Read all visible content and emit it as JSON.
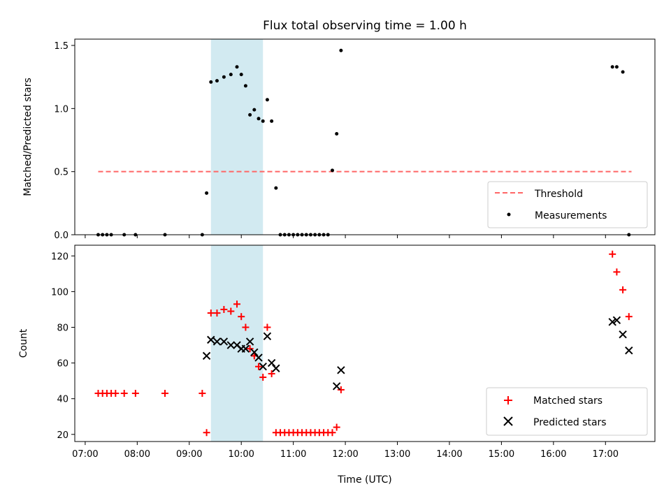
{
  "chart_data": [
    {
      "type": "scatter",
      "title": "Flux total observing time = 1.00 h",
      "ylabel": "Matched/Predicted stars",
      "xlabel": "",
      "x_range_hours": [
        6.8,
        17.95
      ],
      "ylim": [
        0,
        1.55
      ],
      "yticks": [
        0.0,
        0.5,
        1.0,
        1.5
      ],
      "ytick_labels": [
        "0.0",
        "0.5",
        "1.0",
        "1.5"
      ],
      "grid": false,
      "legend_position": "lower-right",
      "highlight_span": {
        "x0": "09:25",
        "x1": "10:25",
        "color": "#add8e6"
      },
      "series": [
        {
          "name": "Threshold",
          "kind": "line",
          "style": "dashed",
          "color": "#ff6666",
          "x": [
            "07:15",
            "17:30"
          ],
          "y": [
            0.5,
            0.5
          ]
        },
        {
          "name": "Measurements",
          "kind": "points",
          "color": "#000000",
          "x": [
            "07:15",
            "07:20",
            "07:25",
            "07:30",
            "07:45",
            "07:58",
            "08:32",
            "09:15",
            "09:20",
            "09:25",
            "09:32",
            "09:40",
            "09:48",
            "09:55",
            "10:00",
            "10:05",
            "10:10",
            "10:15",
            "10:20",
            "10:25",
            "10:30",
            "10:35",
            "10:40",
            "10:45",
            "10:50",
            "10:55",
            "11:00",
            "11:05",
            "11:10",
            "11:15",
            "11:20",
            "11:25",
            "11:30",
            "11:35",
            "11:40",
            "11:45",
            "11:50",
            "11:55",
            "17:08",
            "17:13",
            "17:20",
            "17:27"
          ],
          "y": [
            0,
            0,
            0,
            0,
            0,
            0,
            0,
            0,
            0.33,
            1.21,
            1.22,
            1.25,
            1.27,
            1.33,
            1.27,
            1.18,
            0.95,
            0.99,
            0.92,
            0.9,
            1.07,
            0.9,
            0.37,
            0,
            0,
            0,
            0,
            0,
            0,
            0,
            0,
            0,
            0,
            0,
            0,
            0.51,
            0.8,
            1.46,
            1.33,
            1.33,
            1.29,
            0
          ]
        }
      ]
    },
    {
      "type": "scatter",
      "title": "",
      "ylabel": "Count",
      "xlabel": "Time (UTC)",
      "x_range_hours": [
        6.8,
        17.95
      ],
      "xticks": [
        "07:00",
        "08:00",
        "09:00",
        "10:00",
        "11:00",
        "12:00",
        "13:00",
        "14:00",
        "15:00",
        "16:00",
        "17:00"
      ],
      "ylim": [
        16,
        126
      ],
      "yticks": [
        20,
        40,
        60,
        80,
        100,
        120
      ],
      "ytick_labels": [
        "20",
        "40",
        "60",
        "80",
        "100",
        "120"
      ],
      "grid": false,
      "legend_position": "lower-right",
      "highlight_span": {
        "x0": "09:25",
        "x1": "10:25",
        "color": "#add8e6"
      },
      "series": [
        {
          "name": "Matched stars",
          "marker": "plus",
          "color": "#ff0000",
          "x": [
            "07:15",
            "07:20",
            "07:25",
            "07:30",
            "07:35",
            "07:45",
            "07:58",
            "08:32",
            "09:15",
            "09:20",
            "09:25",
            "09:32",
            "09:40",
            "09:48",
            "09:55",
            "10:00",
            "10:05",
            "10:10",
            "10:15",
            "10:20",
            "10:25",
            "10:30",
            "10:35",
            "10:40",
            "10:45",
            "10:50",
            "10:55",
            "11:00",
            "11:05",
            "11:10",
            "11:15",
            "11:20",
            "11:25",
            "11:30",
            "11:35",
            "11:40",
            "11:45",
            "11:50",
            "11:55",
            "17:08",
            "17:13",
            "17:20",
            "17:27"
          ],
          "y": [
            43,
            43,
            43,
            43,
            43,
            43,
            43,
            43,
            43,
            21,
            88,
            88,
            90,
            89,
            93,
            86,
            80,
            68,
            64,
            58,
            52,
            80,
            54,
            21,
            21,
            21,
            21,
            21,
            21,
            21,
            21,
            21,
            21,
            21,
            21,
            21,
            21,
            24,
            45,
            121,
            111,
            101,
            86
          ]
        },
        {
          "name": "Predicted stars",
          "marker": "x",
          "color": "#000000",
          "x": [
            "09:20",
            "09:25",
            "09:32",
            "09:40",
            "09:48",
            "09:55",
            "10:00",
            "10:05",
            "10:10",
            "10:15",
            "10:20",
            "10:25",
            "10:30",
            "10:35",
            "10:40",
            "11:50",
            "11:55",
            "17:08",
            "17:13",
            "17:20",
            "17:27"
          ],
          "y": [
            64,
            73,
            72,
            72,
            70,
            70,
            68,
            68,
            72,
            66,
            63,
            58,
            75,
            60,
            57,
            47,
            56,
            83,
            84,
            76,
            67
          ]
        }
      ]
    }
  ]
}
